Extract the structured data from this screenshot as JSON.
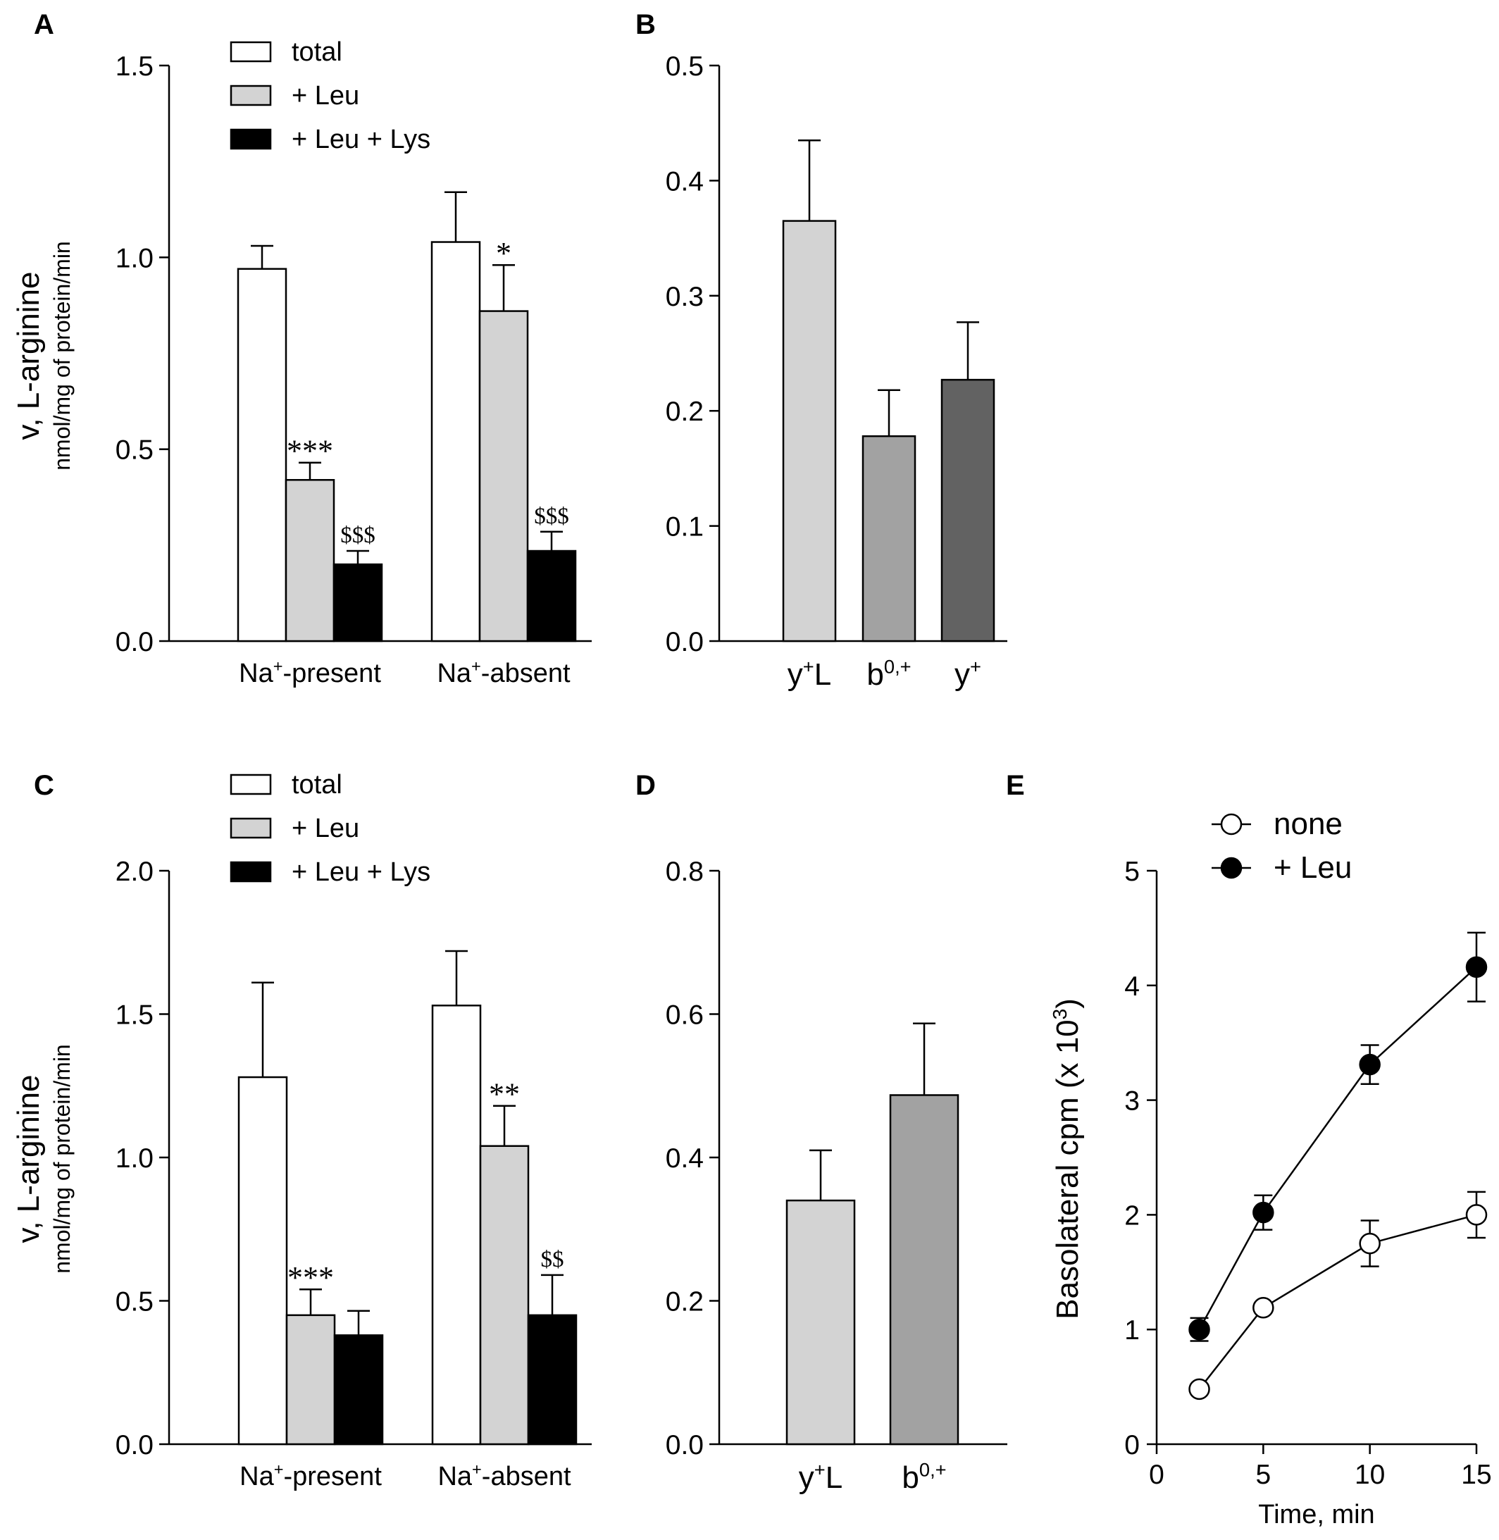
{
  "chart_data": [
    {
      "panel": "A",
      "type": "bar",
      "ylabel": "v, L-arginine",
      "ylabel_sub": "nmol/mg of  protein/min",
      "ylim": [
        0,
        1.5
      ],
      "yticks": [
        "0.0",
        "0.5",
        "1.0",
        "1.5"
      ],
      "categories": [
        {
          "base": "Na",
          "sup": "+",
          "rest": "-present"
        },
        {
          "base": "Na",
          "sup": "+",
          "rest": "-absent"
        }
      ],
      "legend": [
        "total",
        "+ Leu",
        "+ Leu + Lys"
      ],
      "series": [
        {
          "fill": "#ffffff",
          "values": [
            0.97,
            1.04
          ],
          "errors": [
            0.06,
            0.13
          ],
          "annotations": [
            "",
            ""
          ]
        },
        {
          "fill": "#d3d3d3",
          "values": [
            0.42,
            0.86
          ],
          "errors": [
            0.045,
            0.12
          ],
          "annotations": [
            "***",
            "*"
          ]
        },
        {
          "fill": "#000000",
          "values": [
            0.2,
            0.235
          ],
          "errors": [
            0.035,
            0.05
          ],
          "annotations": [
            "$$$",
            "$$$"
          ]
        }
      ]
    },
    {
      "panel": "B",
      "type": "bar",
      "ylim": [
        0,
        0.5
      ],
      "yticks": [
        "0.0",
        "0.1",
        "0.2",
        "0.3",
        "0.4",
        "0.5"
      ],
      "categories": [
        {
          "base": "y",
          "sup": "+",
          "rest": "L"
        },
        {
          "base": "b",
          "sup": "0,+",
          "rest": ""
        },
        {
          "base": "y",
          "sup": "+",
          "rest": ""
        }
      ],
      "values": [
        0.365,
        0.178,
        0.227
      ],
      "errors": [
        0.07,
        0.04,
        0.05
      ],
      "fills": [
        "#d3d3d3",
        "#a2a2a2",
        "#626262"
      ]
    },
    {
      "panel": "C",
      "type": "bar",
      "ylabel": "v, L-arginine",
      "ylabel_sub": "nmol/mg of  protein/min",
      "ylim": [
        0,
        2.0
      ],
      "yticks": [
        "0.0",
        "0.5",
        "1.0",
        "1.5",
        "2.0"
      ],
      "categories": [
        {
          "base": "Na",
          "sup": "+",
          "rest": "-present"
        },
        {
          "base": "Na",
          "sup": "+",
          "rest": "-absent"
        }
      ],
      "legend": [
        "total",
        "+ Leu",
        "+ Leu + Lys"
      ],
      "series": [
        {
          "fill": "#ffffff",
          "values": [
            1.28,
            1.53
          ],
          "errors": [
            0.33,
            0.19
          ],
          "annotations": [
            "",
            ""
          ]
        },
        {
          "fill": "#d3d3d3",
          "values": [
            0.45,
            1.04
          ],
          "errors": [
            0.09,
            0.14
          ],
          "annotations": [
            "***",
            "**"
          ]
        },
        {
          "fill": "#000000",
          "values": [
            0.38,
            0.45
          ],
          "errors": [
            0.085,
            0.14
          ],
          "annotations": [
            "",
            "$$"
          ]
        }
      ]
    },
    {
      "panel": "D",
      "type": "bar",
      "ylim": [
        0,
        0.8
      ],
      "yticks": [
        "0.0",
        "0.2",
        "0.4",
        "0.6",
        "0.8"
      ],
      "categories": [
        {
          "base": "y",
          "sup": "+",
          "rest": "L"
        },
        {
          "base": "b",
          "sup": "0,+",
          "rest": ""
        }
      ],
      "values": [
        0.34,
        0.487
      ],
      "errors": [
        0.07,
        0.1
      ],
      "fills": [
        "#d3d3d3",
        "#a2a2a2"
      ]
    },
    {
      "panel": "E",
      "type": "line",
      "xlabel": "Time, min",
      "ylabel": "Basolateral cpm (x 10",
      "ylabel_sup": "3",
      "ylabel_end": ")",
      "xlim": [
        0,
        15
      ],
      "ylim": [
        0,
        5
      ],
      "xticks": [
        "0",
        "5",
        "10",
        "15"
      ],
      "yticks": [
        "0",
        "1",
        "2",
        "3",
        "4",
        "5"
      ],
      "x": [
        2,
        5,
        10,
        15
      ],
      "series": [
        {
          "name": "none",
          "marker": "open",
          "y": [
            0.48,
            1.19,
            1.75,
            2.0
          ],
          "errors": [
            0.0,
            0.0,
            0.2,
            0.2
          ]
        },
        {
          "name": " + Leu",
          "marker": "filled",
          "y": [
            1.0,
            2.02,
            3.31,
            4.16
          ],
          "errors": [
            0.1,
            0.15,
            0.17,
            0.3
          ]
        }
      ]
    }
  ]
}
